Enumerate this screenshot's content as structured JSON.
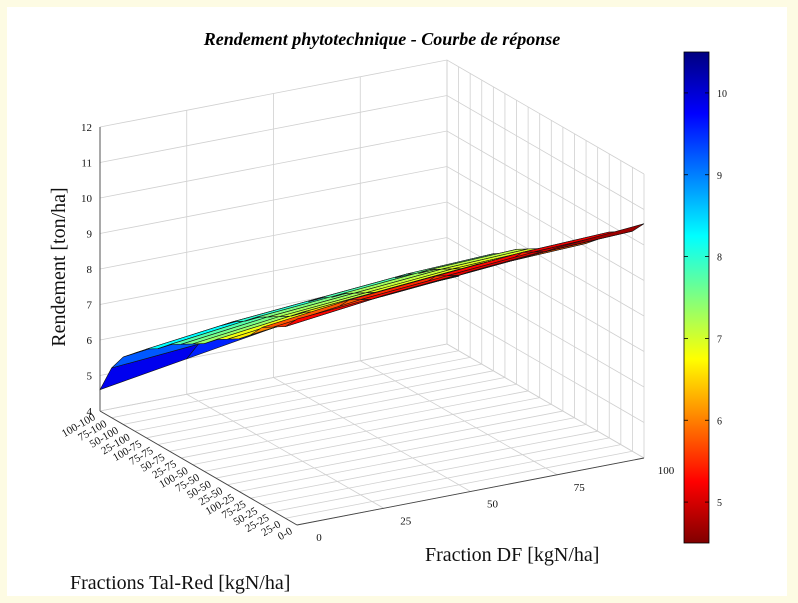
{
  "chart_data": {
    "type": "surface",
    "title": "Rendement phytotechnique - Courbe de réponse",
    "zlabel": "Rendement  [ton/ha]",
    "xlabel": "Fraction DF [kgN/ha]",
    "ylabel": "Fractions Tal-Red [kgN/ha]",
    "zlim": [
      4,
      12
    ],
    "z_ticks": [
      "4",
      "5",
      "6",
      "7",
      "8",
      "9",
      "10",
      "11",
      "12"
    ],
    "x_ticks": [
      "0",
      "25",
      "50",
      "75",
      "100"
    ],
    "y_tick_labels": [
      "100-100",
      "75-100",
      "50-100",
      "25-100",
      "100-75",
      "75-75",
      "50-75",
      "25-75",
      "100-50",
      "75-50",
      "50-50",
      "25-50",
      "100-25",
      "75-25",
      "50-25",
      "25-25",
      "25-0",
      "0-0"
    ],
    "colorbar_ticks": [
      "5",
      "6",
      "7",
      "8",
      "9",
      "10"
    ],
    "colorbar_range": [
      4.5,
      10.5
    ],
    "colormap": "jet",
    "grid": true,
    "surface_z": [
      [
        9.8,
        10.0,
        10.2,
        10.4,
        10.6
      ],
      [
        9.4,
        9.7,
        9.9,
        10.1,
        10.2
      ],
      [
        9.2,
        9.5,
        9.7,
        9.9,
        10.0
      ],
      [
        9.0,
        9.3,
        9.5,
        9.7,
        9.8
      ],
      [
        8.6,
        8.9,
        9.1,
        9.3,
        9.4
      ],
      [
        8.3,
        8.6,
        8.8,
        9.0,
        9.1
      ],
      [
        8.1,
        8.4,
        8.6,
        8.8,
        8.9
      ],
      [
        7.9,
        8.2,
        8.4,
        8.6,
        8.7
      ],
      [
        7.6,
        7.9,
        8.1,
        8.3,
        8.4
      ],
      [
        7.4,
        7.7,
        7.9,
        8.1,
        8.2
      ],
      [
        7.2,
        7.5,
        7.7,
        7.9,
        8.0
      ],
      [
        7.0,
        7.3,
        7.5,
        7.7,
        7.8
      ],
      [
        6.7,
        7.0,
        7.2,
        7.4,
        7.5
      ],
      [
        6.5,
        6.8,
        7.0,
        7.2,
        7.3
      ],
      [
        6.2,
        6.5,
        6.7,
        6.9,
        7.0
      ],
      [
        5.9,
        6.2,
        6.4,
        6.6,
        6.7
      ],
      [
        5.4,
        5.6,
        5.8,
        6.0,
        6.1
      ],
      [
        4.6,
        5.0,
        5.4,
        5.8,
        6.2
      ]
    ]
  }
}
